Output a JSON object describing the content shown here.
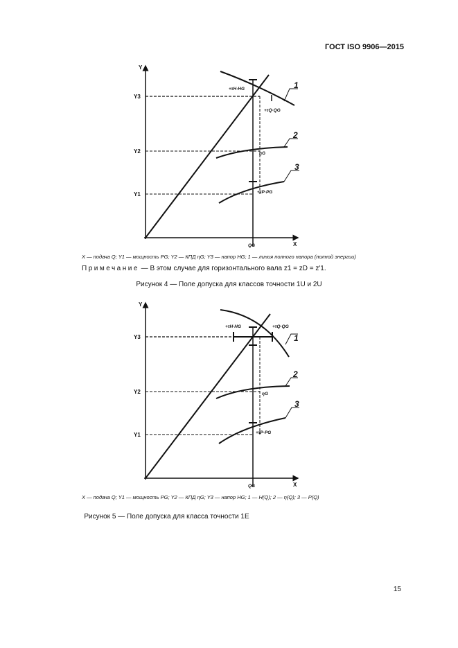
{
  "header": {
    "standard": "ГОСТ ISO 9906—2015"
  },
  "figure4": {
    "axis_y": "Y",
    "axis_x": "X",
    "y1": "Y1",
    "y2": "Y2",
    "y3": "Y3",
    "qg": "QG",
    "tol_h": "+τH·HG",
    "tol_q": "+τQ·QG",
    "eta": "ηG",
    "tol_p": "+τP·PG",
    "curve1": "1",
    "curve2": "2",
    "curve3": "3",
    "legend": "X — подача Q; Y1 — мощность PG; Y2 — КПД ηG; Y3 — напор HG; 1 — линия полного напора (полной энергии)",
    "note_label": "Примечание",
    "note_text": " —  В этом случае для горизонтального вала z1 = zD = z'1.",
    "caption": "Рисунок 4 — Поле допуска для классов точности 1U и 2U"
  },
  "figure5": {
    "axis_y": "Y",
    "axis_x": "X",
    "y1": "Y1",
    "y2": "Y2",
    "y3": "Y3",
    "qg": "QG",
    "tol_h": "+τH·HG",
    "tol_q": "+τQ·QG",
    "eta": "ηG",
    "tol_p": "+τP·PG",
    "curve1": "1",
    "curve2": "2",
    "curve3": "3",
    "legend": "X — подача Q; Y1 — мощность PG; Y2 — КПД ηG; Y3 — напор HG; 1 — H(Q); 2 — η(Q); 3 — P(Q)",
    "caption": "Рисунок 5 — Поле допуска для класса точности 1E"
  },
  "page_number": "15"
}
